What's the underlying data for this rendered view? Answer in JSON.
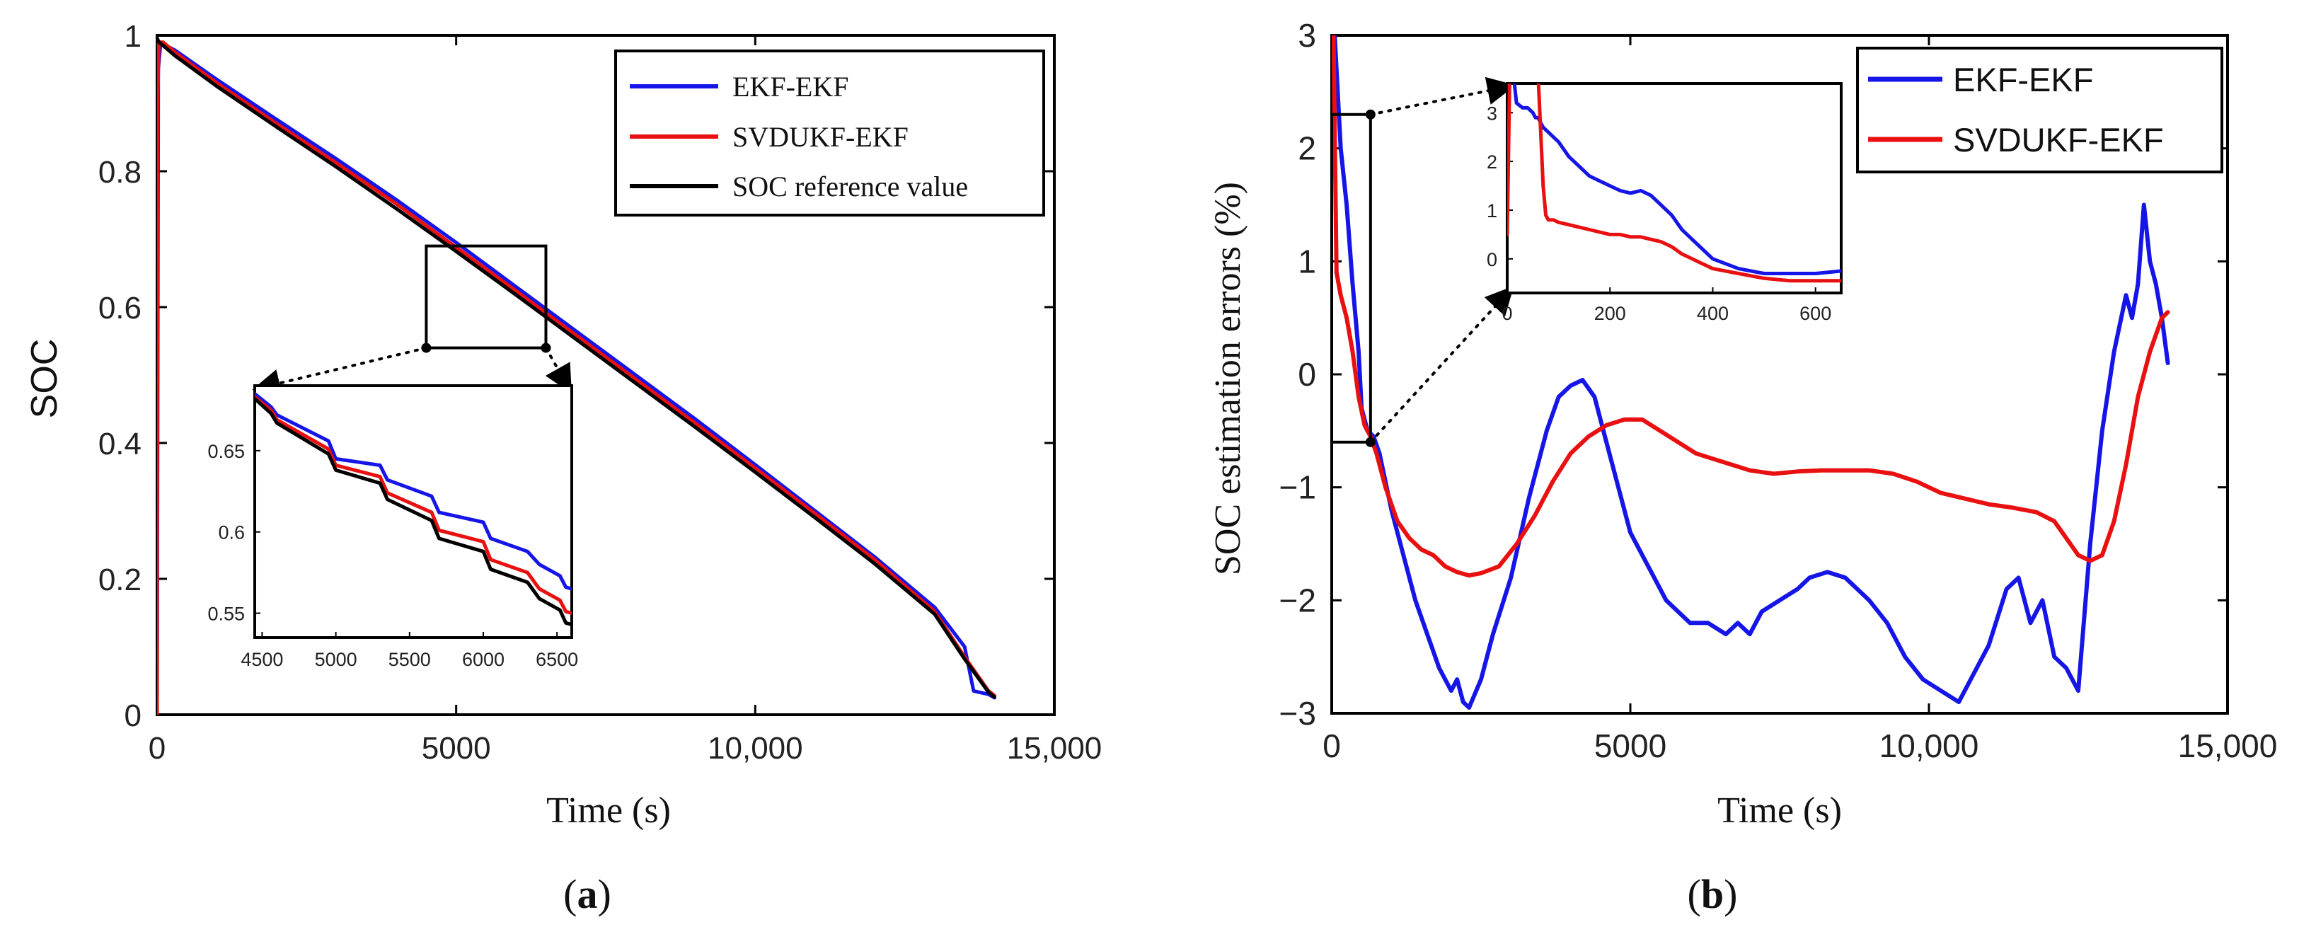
{
  "chart_data": [
    {
      "id": "a",
      "type": "line",
      "caption_open": "(",
      "caption_letter": "a",
      "caption_close": ")",
      "xlabel": "Time  (s)",
      "ylabel": "SOC",
      "xlim": [
        0,
        15000
      ],
      "ylim": [
        0,
        1
      ],
      "xticks": [
        0,
        5000,
        10000,
        15000
      ],
      "xtick_labels": [
        "0",
        "5000",
        "10,000",
        "15,000"
      ],
      "yticks": [
        0,
        0.2,
        0.4,
        0.6,
        0.8,
        1
      ],
      "ytick_labels": [
        "0",
        "0.2",
        "0.4",
        "0.6",
        "0.8",
        "1"
      ],
      "legend_position": "top-right",
      "series": [
        {
          "name": "EKF-EKF",
          "color": "#1515e8",
          "x": [
            0,
            20,
            60,
            150,
            300,
            1000,
            2000,
            3000,
            4000,
            5000,
            6000,
            7000,
            8000,
            9000,
            10000,
            11000,
            12000,
            12500,
            13000,
            13500,
            13650,
            13900,
            14000
          ],
          "y": [
            0,
            0.95,
            0.99,
            0.985,
            0.978,
            0.935,
            0.876,
            0.818,
            0.758,
            0.695,
            0.63,
            0.565,
            0.5,
            0.435,
            0.368,
            0.3,
            0.232,
            0.195,
            0.158,
            0.1,
            0.035,
            0.03,
            0.025
          ]
        },
        {
          "name": "SVDUKF-EKF",
          "color": "#e81010",
          "x": [
            0,
            10,
            30,
            100,
            300,
            1000,
            2000,
            3000,
            4000,
            5000,
            6000,
            7000,
            8000,
            9000,
            10000,
            11000,
            12000,
            12500,
            13000,
            13500,
            13900,
            14000
          ],
          "y": [
            0,
            0.9,
            0.99,
            0.99,
            0.975,
            0.93,
            0.87,
            0.812,
            0.752,
            0.688,
            0.624,
            0.559,
            0.494,
            0.429,
            0.363,
            0.296,
            0.228,
            0.19,
            0.152,
            0.085,
            0.035,
            0.028
          ]
        },
        {
          "name": "SOC reference value",
          "color": "#000000",
          "x": [
            0,
            5,
            30,
            100,
            300,
            1000,
            2000,
            3000,
            4000,
            5000,
            6000,
            7000,
            8000,
            9000,
            10000,
            11000,
            12000,
            12500,
            13000,
            13500,
            13900,
            14000
          ],
          "y": [
            0.995,
            0.995,
            0.99,
            0.985,
            0.97,
            0.925,
            0.865,
            0.806,
            0.745,
            0.682,
            0.618,
            0.553,
            0.488,
            0.423,
            0.357,
            0.29,
            0.222,
            0.185,
            0.148,
            0.082,
            0.033,
            0.026
          ]
        }
      ],
      "inset": {
        "xlim": [
          4450,
          6600
        ],
        "ylim": [
          0.535,
          0.69
        ],
        "xticks": [
          4500,
          5000,
          5500,
          6000,
          6500
        ],
        "xtick_labels": [
          "4500",
          "5000",
          "5500",
          "6000",
          "6500"
        ],
        "yticks": [
          0.55,
          0.6,
          0.65
        ],
        "ytick_labels": [
          "0.55",
          "0.6",
          "0.65"
        ],
        "zoom_region": {
          "x": [
            4500,
            6500
          ],
          "y": [
            0.54,
            0.69
          ]
        },
        "series": [
          {
            "name": "EKF-EKF",
            "color": "#1515e8",
            "x": [
              4450,
              4560,
              4600,
              4950,
              5000,
              5300,
              5350,
              5650,
              5700,
              6000,
              6050,
              6300,
              6380,
              6520,
              6560,
              6600
            ],
            "y": [
              0.685,
              0.677,
              0.672,
              0.656,
              0.645,
              0.641,
              0.632,
              0.622,
              0.612,
              0.606,
              0.596,
              0.588,
              0.58,
              0.573,
              0.566,
              0.565
            ]
          },
          {
            "name": "SVDUKF-EKF",
            "color": "#e81010",
            "x": [
              4450,
              4560,
              4600,
              4950,
              5000,
              5300,
              5350,
              5650,
              5700,
              6000,
              6050,
              6300,
              6380,
              6520,
              6560,
              6600
            ],
            "y": [
              0.683,
              0.675,
              0.669,
              0.651,
              0.641,
              0.634,
              0.624,
              0.612,
              0.601,
              0.594,
              0.583,
              0.575,
              0.565,
              0.558,
              0.551,
              0.55
            ]
          },
          {
            "name": "SOC reference value",
            "color": "#000000",
            "x": [
              4450,
              4560,
              4600,
              4950,
              5000,
              5300,
              5350,
              5650,
              5700,
              6000,
              6050,
              6300,
              6380,
              6520,
              6560,
              6600
            ],
            "y": [
              0.682,
              0.673,
              0.667,
              0.648,
              0.638,
              0.63,
              0.62,
              0.607,
              0.596,
              0.588,
              0.577,
              0.569,
              0.559,
              0.552,
              0.544,
              0.543
            ]
          }
        ]
      }
    },
    {
      "id": "b",
      "type": "line",
      "caption_open": "(",
      "caption_letter": "b",
      "caption_close": ")",
      "xlabel": "Time  (s)",
      "ylabel": "SOC estimation errors  (%)",
      "xlim": [
        0,
        15000
      ],
      "ylim": [
        -3,
        3
      ],
      "xticks": [
        0,
        5000,
        10000,
        15000
      ],
      "xtick_labels": [
        "0",
        "5000",
        "10,000",
        "15,000"
      ],
      "yticks": [
        -3,
        -2,
        -1,
        0,
        1,
        2,
        3
      ],
      "ytick_labels": [
        "−3",
        "−2",
        "−1",
        "0",
        "1",
        "2",
        "3"
      ],
      "legend_position": "top-right",
      "series": [
        {
          "name": "EKF-EKF",
          "color": "#1515e8",
          "x": [
            0,
            50,
            150,
            250,
            350,
            450,
            500,
            550,
            600,
            700,
            800,
            1000,
            1200,
            1400,
            1600,
            1800,
            2000,
            2100,
            2200,
            2300,
            2500,
            2700,
            3000,
            3300,
            3600,
            3800,
            4000,
            4200,
            4400,
            4600,
            4800,
            5000,
            5200,
            5400,
            5600,
            5800,
            6000,
            6300,
            6600,
            6800,
            7000,
            7200,
            7500,
            7800,
            8000,
            8300,
            8600,
            9000,
            9300,
            9600,
            9900,
            10200,
            10500,
            10800,
            11000,
            11300,
            11500,
            11700,
            11900,
            12100,
            12300,
            12500,
            12700,
            12900,
            13100,
            13300,
            13400,
            13500,
            13600,
            13700,
            13800,
            13900,
            14000
          ],
          "y": [
            3,
            3,
            2.0,
            1.5,
            0.8,
            0.2,
            -0.3,
            -0.4,
            -0.5,
            -0.55,
            -0.7,
            -1.2,
            -1.6,
            -2.0,
            -2.3,
            -2.6,
            -2.8,
            -2.7,
            -2.9,
            -2.95,
            -2.7,
            -2.3,
            -1.8,
            -1.1,
            -0.5,
            -0.2,
            -0.1,
            -0.05,
            -0.2,
            -0.6,
            -1.0,
            -1.4,
            -1.6,
            -1.8,
            -2.0,
            -2.1,
            -2.2,
            -2.2,
            -2.3,
            -2.2,
            -2.3,
            -2.1,
            -2.0,
            -1.9,
            -1.8,
            -1.75,
            -1.8,
            -2.0,
            -2.2,
            -2.5,
            -2.7,
            -2.8,
            -2.9,
            -2.6,
            -2.4,
            -1.9,
            -1.8,
            -2.2,
            -2.0,
            -2.5,
            -2.6,
            -2.8,
            -1.5,
            -0.5,
            0.2,
            0.7,
            0.5,
            0.8,
            1.5,
            1.0,
            0.8,
            0.5,
            0.1
          ]
        },
        {
          "name": "SVDUKF-EKF",
          "color": "#e81010",
          "x": [
            0,
            30,
            80,
            150,
            250,
            350,
            450,
            550,
            650,
            750,
            900,
            1100,
            1300,
            1500,
            1700,
            1900,
            2100,
            2300,
            2500,
            2800,
            3100,
            3400,
            3700,
            4000,
            4300,
            4600,
            4900,
            5200,
            5500,
            5800,
            6100,
            6400,
            6700,
            7000,
            7400,
            7800,
            8200,
            8600,
            9000,
            9400,
            9800,
            10200,
            10600,
            11000,
            11400,
            11800,
            12100,
            12300,
            12500,
            12700,
            12900,
            13100,
            13300,
            13500,
            13700,
            13900,
            14000
          ],
          "y": [
            3,
            3,
            0.9,
            0.7,
            0.5,
            0.2,
            -0.2,
            -0.45,
            -0.55,
            -0.7,
            -1.0,
            -1.3,
            -1.45,
            -1.55,
            -1.6,
            -1.7,
            -1.75,
            -1.78,
            -1.76,
            -1.7,
            -1.5,
            -1.25,
            -0.95,
            -0.7,
            -0.55,
            -0.45,
            -0.4,
            -0.4,
            -0.5,
            -0.6,
            -0.7,
            -0.75,
            -0.8,
            -0.85,
            -0.88,
            -0.86,
            -0.85,
            -0.85,
            -0.85,
            -0.88,
            -0.95,
            -1.05,
            -1.1,
            -1.15,
            -1.18,
            -1.22,
            -1.3,
            -1.45,
            -1.6,
            -1.65,
            -1.6,
            -1.3,
            -0.8,
            -0.2,
            0.2,
            0.5,
            0.55
          ]
        }
      ],
      "inset": {
        "xlim": [
          0,
          650
        ],
        "ylim": [
          -0.7,
          3.6
        ],
        "xticks": [
          0,
          200,
          400,
          600
        ],
        "xtick_labels": [
          "0",
          "200",
          "400",
          "600"
        ],
        "yticks": [
          0,
          1,
          2,
          3
        ],
        "ytick_labels": [
          "0",
          "1",
          "2",
          "3"
        ],
        "zoom_region": {
          "x": [
            0,
            650
          ],
          "y": [
            -0.6,
            2.3
          ]
        },
        "series": [
          {
            "name": "EKF-EKF",
            "color": "#1515e8",
            "x": [
              0,
              12,
              18,
              30,
              40,
              50,
              55,
              60,
              70,
              80,
              100,
              120,
              140,
              160,
              180,
              200,
              220,
              240,
              260,
              280,
              300,
              320,
              340,
              360,
              380,
              400,
              450,
              500,
              550,
              600,
              650
            ],
            "y": [
              3.8,
              3.8,
              3.2,
              3.1,
              3.1,
              3.0,
              2.9,
              2.9,
              2.7,
              2.6,
              2.4,
              2.1,
              1.9,
              1.7,
              1.6,
              1.5,
              1.4,
              1.35,
              1.4,
              1.3,
              1.1,
              0.9,
              0.6,
              0.4,
              0.2,
              0.0,
              -0.2,
              -0.3,
              -0.3,
              -0.3,
              -0.25
            ]
          },
          {
            "name": "SVDUKF-EKF",
            "color": "#e81010",
            "x": [
              0,
              5,
              10,
              60,
              70,
              75,
              80,
              90,
              100,
              120,
              140,
              160,
              180,
              200,
              220,
              240,
              260,
              280,
              300,
              320,
              340,
              360,
              380,
              400,
              450,
              500,
              550,
              600,
              650
            ],
            "y": [
              0.5,
              3.8,
              3.8,
              3.8,
              1.5,
              0.9,
              0.8,
              0.8,
              0.75,
              0.7,
              0.65,
              0.6,
              0.55,
              0.5,
              0.5,
              0.45,
              0.45,
              0.4,
              0.35,
              0.25,
              0.1,
              0.0,
              -0.1,
              -0.2,
              -0.3,
              -0.4,
              -0.45,
              -0.45,
              -0.45
            ]
          }
        ]
      }
    }
  ]
}
